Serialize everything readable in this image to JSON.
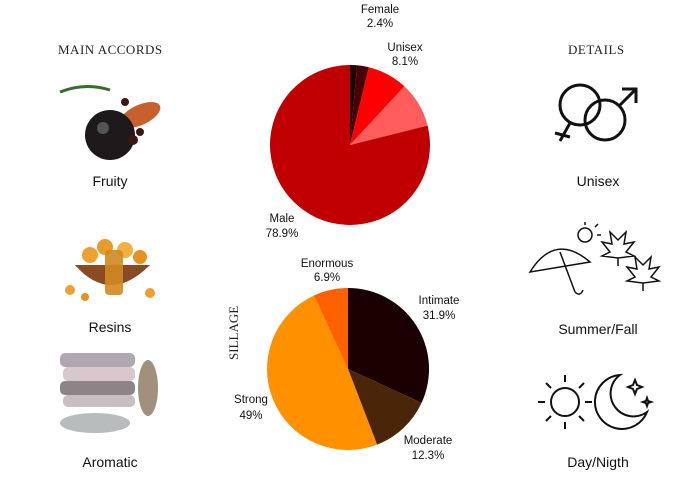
{
  "left": {
    "title": "MAIN ACCORDS",
    "accords": [
      {
        "label": "Fruity",
        "icon": "fruit-image"
      },
      {
        "label": "Resins",
        "icon": "resins-image"
      },
      {
        "label": "Aromatic",
        "icon": "yarn-image"
      }
    ]
  },
  "right": {
    "title": "DETAILS",
    "details": [
      {
        "label": "Unisex",
        "icon": "gender-symbols-icon"
      },
      {
        "label": "Summer/Fall",
        "icon": "umbrella-sun-leaves-icon"
      },
      {
        "label": "Day/Nigth",
        "icon": "sun-moon-icon"
      }
    ]
  },
  "sillage_label": "SILLAGE",
  "chart_data": [
    {
      "type": "pie",
      "slices": [
        {
          "label": "",
          "value": 1.4,
          "color": "#1a0000"
        },
        {
          "label": "Female",
          "value": 2.4,
          "display": "2.4%",
          "color": "#4a0000"
        },
        {
          "label": "Unisex",
          "value": 8.1,
          "display": "8.1%",
          "color": "#ff0000"
        },
        {
          "label": "",
          "value": 9.2,
          "color": "#ff5c5c"
        },
        {
          "label": "Male",
          "value": 78.9,
          "display": "78.9%",
          "color": "#c00000"
        }
      ]
    },
    {
      "type": "pie",
      "title": "SILLAGE",
      "slices": [
        {
          "label": "Intimate",
          "value": 31.9,
          "display": "31.9%",
          "color": "#1a0000"
        },
        {
          "label": "Moderate",
          "value": 12.3,
          "display": "12.3%",
          "color": "#4a2508"
        },
        {
          "label": "Strong",
          "value": 49,
          "display": "49%",
          "color": "#ff9000"
        },
        {
          "label": "Enormous",
          "value": 6.9,
          "display": "6.9%",
          "color": "#ff6000"
        }
      ]
    }
  ]
}
